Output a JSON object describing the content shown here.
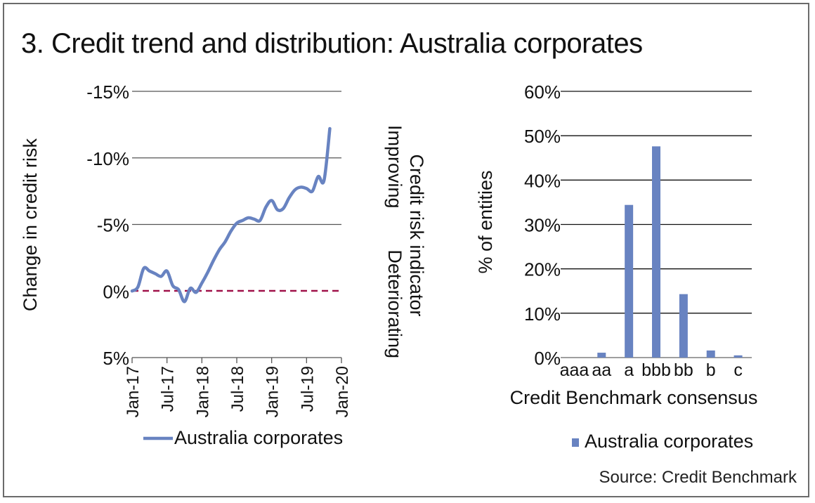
{
  "title": "3. Credit trend and distribution: Australia corporates",
  "source": "Source: Credit Benchmark",
  "colors": {
    "series": "#6883c1",
    "zero_line": "#a0124a",
    "grid": "#444444"
  },
  "chart_data": [
    {
      "type": "line",
      "ylabel": "Change in credit risk",
      "right_label": {
        "line1": "Credit risk indicator",
        "line2_left": "Improving",
        "line2_right": "Deteriorating"
      },
      "ylim": [
        5,
        -15
      ],
      "yticks": [
        -15,
        -10,
        -5,
        0,
        5
      ],
      "ytick_labels": [
        "-15%",
        "-10%",
        "-5%",
        "0%",
        "5%"
      ],
      "xtick_labels": [
        "Jan-17",
        "Jul-17",
        "Jan-18",
        "Jul-18",
        "Jan-19",
        "Jul-19",
        "Jan-20"
      ],
      "x_months": 36,
      "legend": "Australia corporates",
      "series": [
        {
          "name": "Australia corporates",
          "values": [
            0,
            -0.3,
            -1.7,
            -1.5,
            -1.3,
            -1.1,
            -1.5,
            -0.4,
            -0.1,
            0.8,
            -0.2,
            0.1,
            -0.6,
            -1.4,
            -2.3,
            -3.1,
            -3.7,
            -4.5,
            -5.1,
            -5.3,
            -5.5,
            -5.4,
            -5.3,
            -6.3,
            -6.8,
            -6.1,
            -6.2,
            -7.0,
            -7.6,
            -7.8,
            -7.7,
            -7.5,
            -8.6,
            -8.3,
            -12.2
          ]
        }
      ]
    },
    {
      "type": "bar",
      "ylabel": "% of entities",
      "xlabel": "Credit Benchmark consensus",
      "ylim": [
        0,
        60
      ],
      "ytick_labels": [
        "0%",
        "10%",
        "20%",
        "30%",
        "40%",
        "50%",
        "60%"
      ],
      "categories": [
        "aaa",
        "aa",
        "a",
        "bbb",
        "bb",
        "b",
        "c"
      ],
      "values": [
        0,
        1.1,
        34.4,
        47.6,
        14.3,
        1.6,
        0.5
      ],
      "legend": "Australia corporates"
    }
  ]
}
